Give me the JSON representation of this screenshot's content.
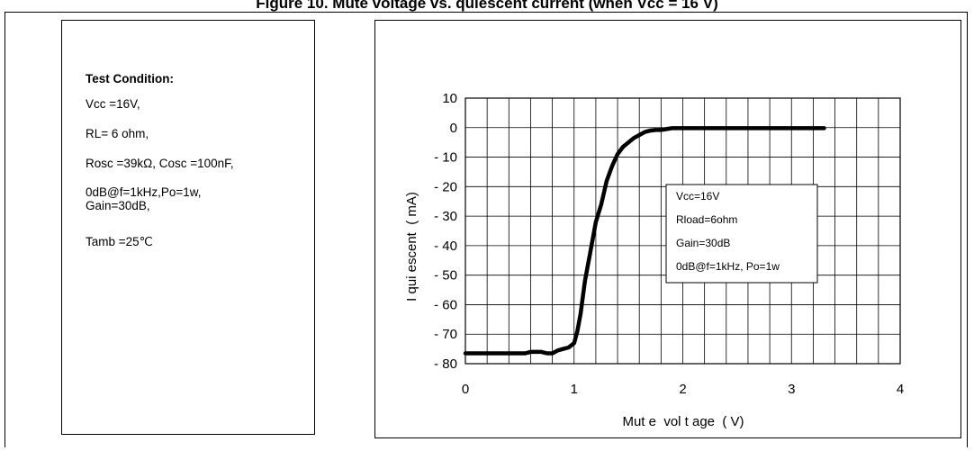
{
  "page_title": "Figure 10. Mute voltage vs. quiescent current (when Vcc = 16 V)",
  "test_condition": {
    "title": "Test Condition:",
    "lines": [
      "Vcc =16V,",
      "RL= 6 ohm,",
      "Rosc =39kΩ, Cosc =100nF,",
      "0dB@f=1kHz,Po=1w,\nGain=30dB,",
      "Tamb =25℃"
    ]
  },
  "chart_data": {
    "type": "line",
    "xlabel": "Mut e  vol t age  ( V)",
    "ylabel": "I qui escent  ( mA)",
    "xlim": [
      0,
      4
    ],
    "ylim": [
      -80,
      10
    ],
    "x_ticks": [
      "0",
      "1",
      "2",
      "3",
      "4"
    ],
    "x_tick_values": [
      0,
      1,
      2,
      3,
      4
    ],
    "y_ticks": [
      "10",
      "0",
      "- 10",
      "- 20",
      "- 30",
      "- 40",
      "- 50",
      "- 60",
      "- 70",
      "- 80"
    ],
    "y_tick_values": [
      10,
      0,
      -10,
      -20,
      -30,
      -40,
      -50,
      -60,
      -70,
      -80
    ],
    "grid": true,
    "series": [
      {
        "x": [
          0,
          0.3,
          0.55,
          0.6,
          0.7,
          0.75,
          0.8,
          0.85,
          0.9,
          0.95,
          1.0,
          1.03,
          1.06,
          1.1,
          1.15,
          1.2,
          1.25,
          1.3,
          1.35,
          1.4,
          1.45,
          1.5,
          1.55,
          1.6,
          1.65,
          1.7,
          1.75,
          1.8,
          1.85,
          1.9,
          2.0,
          2.5,
          3.0,
          3.3
        ],
        "y": [
          -76.5,
          -76.5,
          -76.5,
          -76,
          -76,
          -76.5,
          -76.5,
          -75.5,
          -75,
          -74.5,
          -73,
          -69,
          -63,
          -52,
          -42,
          -32,
          -26,
          -18,
          -13,
          -9,
          -6.5,
          -5,
          -3.5,
          -2.5,
          -1.5,
          -1,
          -0.8,
          -0.8,
          -0.5,
          -0.2,
          -0.2,
          -0.2,
          -0.2,
          -0.2
        ]
      }
    ],
    "legend": {
      "placement": "center-right",
      "lines": [
        "Vcc=16V",
        "Rload=6ohm",
        "Gain=30dB",
        "0dB@f=1kHz, Po=1w"
      ]
    }
  },
  "colors": {
    "line": "#000000",
    "grid": "#000000",
    "background": "#ffffff"
  }
}
